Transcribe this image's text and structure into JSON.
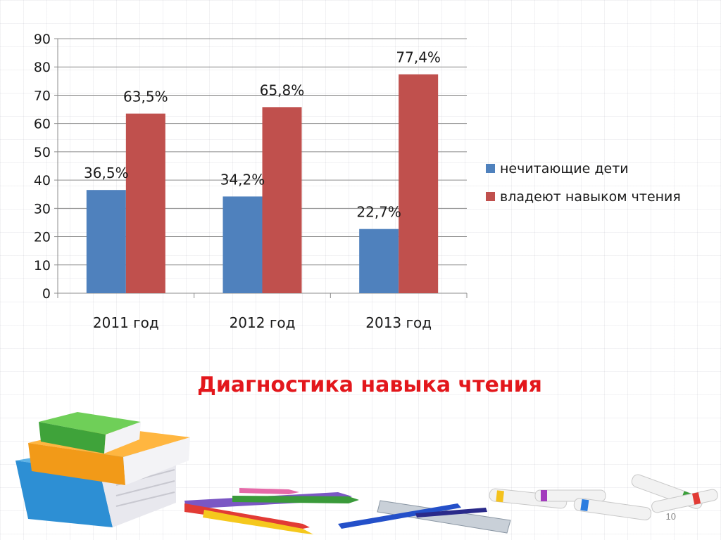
{
  "chart_data": {
    "type": "bar",
    "categories": [
      "2011 год",
      "2012 год",
      "2013 год"
    ],
    "series": [
      {
        "name": "нечитающие дети",
        "color": "#4f81bd",
        "values": [
          36.5,
          34.2,
          22.7
        ],
        "labels": [
          "36,5%",
          "34,2%",
          "22,7%"
        ]
      },
      {
        "name": "владеют навыком чтения",
        "color": "#c0504d",
        "values": [
          63.5,
          65.8,
          77.4
        ],
        "labels": [
          "63,5%",
          "65,8%",
          "77,4%"
        ]
      }
    ],
    "ylim": [
      0,
      90
    ],
    "yticks": [
      0,
      10,
      20,
      30,
      40,
      50,
      60,
      70,
      80,
      90
    ],
    "grid": true,
    "legend_position": "right"
  },
  "slide": {
    "title": "Диагностика навыка чтения",
    "page_number": "10"
  },
  "decorations": {
    "books_icon": "stack-of-books",
    "stationery_icon": "pencils-ruler-pens-markers"
  }
}
